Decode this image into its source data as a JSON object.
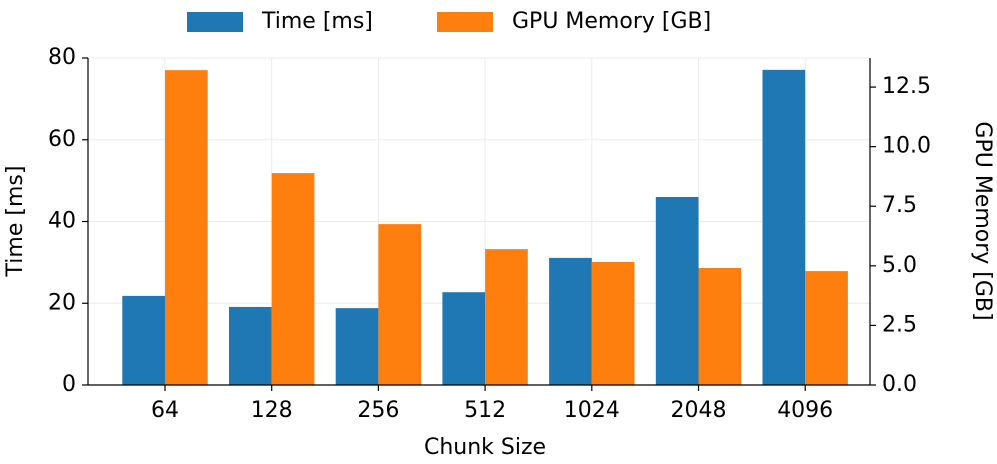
{
  "chart_data": {
    "type": "bar",
    "xlabel": "Chunk Size",
    "ylabel": "Time [ms]",
    "y2label": "GPU Memory [GB]",
    "categories": [
      "64",
      "128",
      "256",
      "512",
      "1024",
      "2048",
      "4096"
    ],
    "series": [
      {
        "name": "Time [ms]",
        "color": "#1f77b4",
        "values": [
          21.8,
          19.1,
          18.8,
          22.7,
          31.1,
          46.0,
          77.1
        ]
      },
      {
        "name": "GPU Memory [GB]",
        "color": "#ff7f0e",
        "axis": "y2",
        "values": [
          13.21,
          8.89,
          6.75,
          5.7,
          5.16,
          4.91,
          4.78
        ]
      }
    ],
    "ylim": [
      0,
      80
    ],
    "yticks": [
      0,
      20,
      40,
      60,
      80
    ],
    "y2lim": [
      0,
      13.72
    ],
    "y2ticks": [
      {
        "value": 0,
        "label": "0.0"
      },
      2.5,
      {
        "value": 5,
        "label": "5.0"
      },
      7.5,
      {
        "value": 10,
        "label": "10.0"
      },
      12.5
    ],
    "grid": true,
    "legend": "top"
  }
}
